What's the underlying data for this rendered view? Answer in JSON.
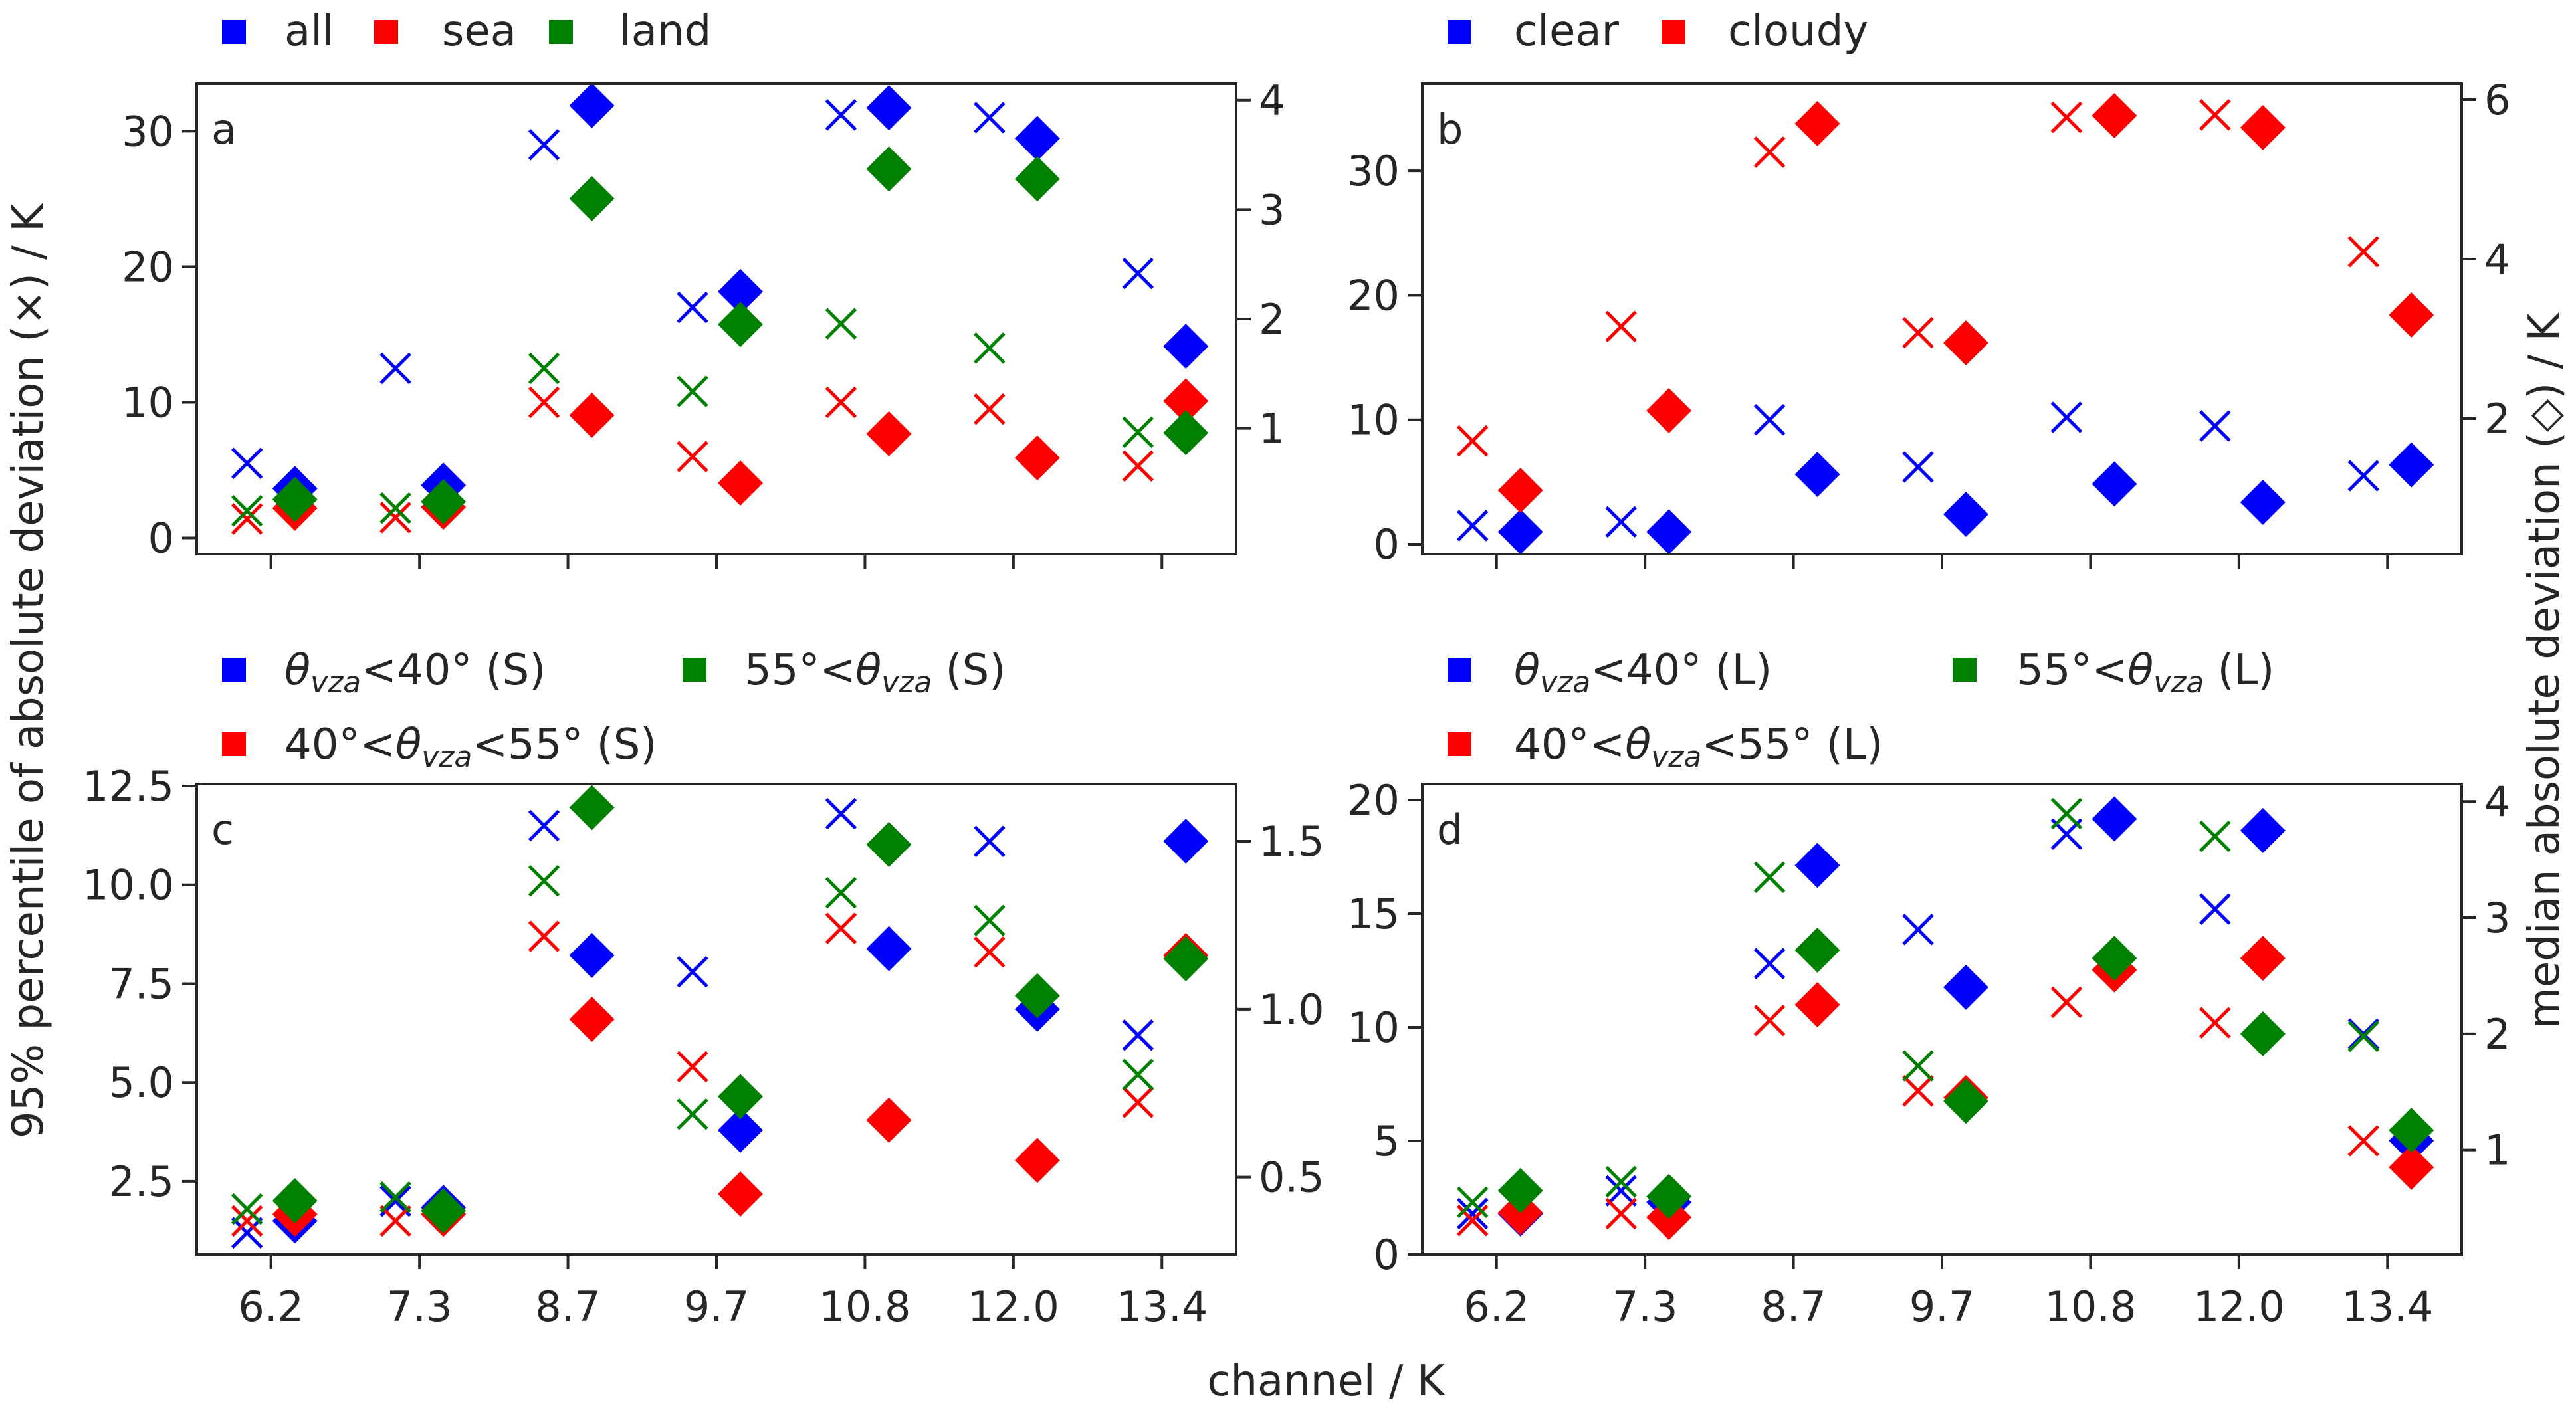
{
  "figure": {
    "ylabel_left": "95% percentile of absolute deviation (×) / K",
    "ylabel_right": "median absolute deviation (◇) / K",
    "xlabel": "channel / K"
  },
  "chart_data": [
    {
      "panel": "a",
      "type": "scatter",
      "categories": [
        "6.2",
        "7.3",
        "8.7",
        "9.7",
        "10.8",
        "12.0",
        "13.4"
      ],
      "ylim_left": [
        -1.2,
        33.5
      ],
      "ylim_right": [
        -0.15,
        4.15
      ],
      "yticks_left": [
        0,
        10,
        20,
        30
      ],
      "yticks_right": [
        1,
        2,
        3,
        4
      ],
      "legend": [
        {
          "label": "all",
          "color": "#0000ff"
        },
        {
          "label": "sea",
          "color": "#ff0000"
        },
        {
          "label": "land",
          "color": "#008000"
        }
      ],
      "series": [
        {
          "name": "all",
          "color": "#0000ff",
          "p95": [
            5.5,
            12.5,
            29,
            17,
            31.2,
            31,
            19.5
          ],
          "mad": [
            0.45,
            0.48,
            3.95,
            2.25,
            3.93,
            3.65,
            1.75
          ]
        },
        {
          "name": "sea",
          "color": "#ff0000",
          "p95": [
            1.4,
            1.5,
            10,
            6,
            10,
            9.5,
            5.3
          ],
          "mad": [
            0.27,
            0.28,
            1.12,
            0.5,
            0.95,
            0.73,
            1.25
          ]
        },
        {
          "name": "land",
          "color": "#008000",
          "p95": [
            2.0,
            2.2,
            12.5,
            10.8,
            15.8,
            14,
            7.8
          ],
          "mad": [
            0.35,
            0.33,
            3.1,
            1.95,
            3.37,
            3.28,
            0.96
          ]
        }
      ]
    },
    {
      "panel": "b",
      "type": "scatter",
      "categories": [
        "6.2",
        "7.3",
        "8.7",
        "9.7",
        "10.8",
        "12.0",
        "13.4"
      ],
      "ylim_left": [
        -0.8,
        37
      ],
      "ylim_right": [
        0.3,
        6.2
      ],
      "yticks_left": [
        0,
        10,
        20,
        30
      ],
      "yticks_right": [
        2,
        4,
        6
      ],
      "legend": [
        {
          "label": "clear",
          "color": "#0000ff"
        },
        {
          "label": "cloudy",
          "color": "#ff0000"
        }
      ],
      "series": [
        {
          "name": "clear",
          "color": "#0000ff",
          "p95": [
            1.5,
            1.8,
            10,
            6.2,
            10.2,
            9.5,
            5.5
          ],
          "mad": [
            0.58,
            0.58,
            1.3,
            0.8,
            1.18,
            0.95,
            1.42
          ]
        },
        {
          "name": "cloudy",
          "color": "#ff0000",
          "p95": [
            8.3,
            17.5,
            31.5,
            17,
            34.3,
            34.5,
            23.5
          ],
          "mad": [
            1.1,
            2.1,
            5.7,
            2.95,
            5.8,
            5.65,
            3.3
          ]
        }
      ]
    },
    {
      "panel": "c",
      "type": "scatter",
      "categories": [
        "6.2",
        "7.3",
        "8.7",
        "9.7",
        "10.8",
        "12.0",
        "13.4"
      ],
      "ylim_left": [
        0.65,
        12.55
      ],
      "ylim_right": [
        0.27,
        1.67
      ],
      "yticks_left": [
        2.5,
        5.0,
        7.5,
        10.0,
        12.5
      ],
      "yticks_right": [
        0.5,
        1.0,
        1.5
      ],
      "legend": [
        {
          "label_prefix": "",
          "label_main": "θ",
          "label_sub": "vza",
          "label_suffix": "<40° (S)",
          "color": "#0000ff"
        },
        {
          "label_prefix": "55°<",
          "label_main": "θ",
          "label_sub": "vza",
          "label_suffix": " (S)",
          "color": "#008000"
        },
        {
          "label_prefix": "40°<",
          "label_main": "θ",
          "label_sub": "vza",
          "label_suffix": "<55° (S)",
          "color": "#ff0000"
        }
      ],
      "series": [
        {
          "name": "θvza<40° (S)",
          "color": "#0000ff",
          "p95": [
            1.2,
            2.0,
            11.5,
            7.8,
            11.8,
            11.1,
            6.2
          ],
          "mad": [
            0.37,
            0.41,
            1.16,
            0.64,
            1.18,
            1.0,
            1.5
          ]
        },
        {
          "name": "40°<θvza<55° (S)",
          "color": "#ff0000",
          "p95": [
            1.5,
            1.5,
            8.7,
            5.4,
            8.9,
            8.3,
            4.5
          ],
          "mad": [
            0.39,
            0.39,
            0.97,
            0.45,
            0.67,
            0.55,
            1.16
          ]
        },
        {
          "name": "55°<θvza (S)",
          "color": "#008000",
          "p95": [
            1.8,
            2.1,
            10.1,
            4.2,
            9.8,
            9.1,
            5.2
          ],
          "mad": [
            0.43,
            0.4,
            1.6,
            0.74,
            1.49,
            1.04,
            1.15
          ]
        }
      ]
    },
    {
      "panel": "d",
      "type": "scatter",
      "categories": [
        "6.2",
        "7.3",
        "8.7",
        "9.7",
        "10.8",
        "12.0",
        "13.4"
      ],
      "ylim_left": [
        0,
        20.7
      ],
      "ylim_right": [
        0.1,
        4.15
      ],
      "yticks_left": [
        0,
        5,
        10,
        15,
        20
      ],
      "yticks_right": [
        1,
        2,
        3,
        4
      ],
      "legend": [
        {
          "label_prefix": "",
          "label_main": "θ",
          "label_sub": "vza",
          "label_suffix": "<40° (L)",
          "color": "#0000ff"
        },
        {
          "label_prefix": "55°<",
          "label_main": "θ",
          "label_sub": "vza",
          "label_suffix": " (L)",
          "color": "#008000"
        },
        {
          "label_prefix": "40°<",
          "label_main": "θ",
          "label_sub": "vza",
          "label_suffix": "<55° (L)",
          "color": "#ff0000"
        }
      ],
      "series": [
        {
          "name": "θvza<40° (L)",
          "color": "#0000ff",
          "p95": [
            1.8,
            2.8,
            12.8,
            14.3,
            18.5,
            15.2,
            9.7
          ],
          "mad": [
            0.45,
            0.55,
            3.45,
            2.4,
            3.85,
            3.75,
            1.08
          ]
        },
        {
          "name": "40°<θvza<55° (L)",
          "color": "#ff0000",
          "p95": [
            1.5,
            1.8,
            10.3,
            7.2,
            11.1,
            10.2,
            5.0
          ],
          "mad": [
            0.46,
            0.42,
            2.25,
            1.45,
            2.55,
            2.65,
            0.85
          ]
        },
        {
          "name": "55°<θvza (L)",
          "color": "#008000",
          "p95": [
            2.3,
            3.2,
            16.6,
            8.3,
            19.4,
            18.4,
            9.6
          ],
          "mad": [
            0.65,
            0.6,
            2.72,
            1.42,
            2.65,
            2.0,
            1.17
          ]
        }
      ]
    }
  ]
}
